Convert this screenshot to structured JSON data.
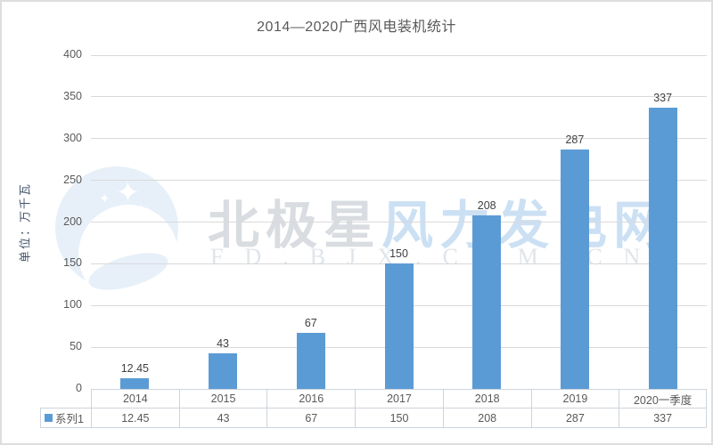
{
  "chart_data": {
    "type": "bar",
    "title": "2014—2020广西风电装机统计",
    "ylabel": "单位：万千瓦",
    "xlabel": "",
    "categories": [
      "2014",
      "2015",
      "2016",
      "2017",
      "2018",
      "2019",
      "2020一季度"
    ],
    "series": [
      {
        "name": "系列1",
        "values": [
          12.45,
          43,
          67,
          150,
          208,
          287,
          337
        ]
      }
    ],
    "data_labels": [
      "12.45",
      "43",
      "67",
      "150",
      "208",
      "287",
      "337"
    ],
    "ylim": [
      0,
      400
    ],
    "ytick_step": 50,
    "grid": "horizontal",
    "legend_position": "bottom-table",
    "bar_color": "#5B9BD5"
  },
  "watermark": {
    "main_gray": "北极星",
    "main_blue": "风力发电网",
    "sub": "FD.BJX.COM.CN"
  },
  "colors": {
    "bar": "#5B9BD5",
    "axis_text": "#595959",
    "grid_line": "#D9D9D9",
    "watermark_blue": "#cce0f4",
    "watermark_gray": "#d9dce0"
  }
}
